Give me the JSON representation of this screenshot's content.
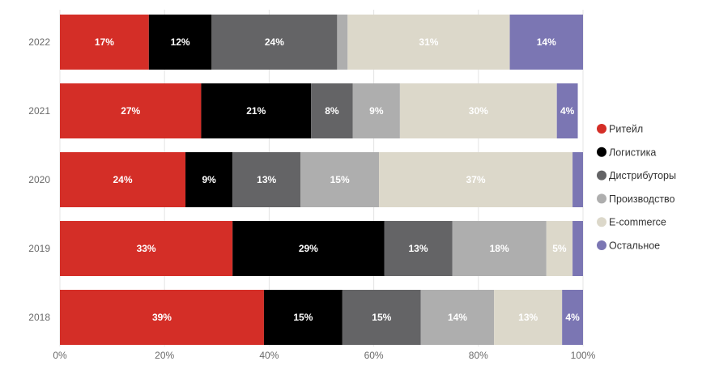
{
  "chart_data": {
    "type": "bar",
    "orientation": "horizontal",
    "stacked": true,
    "categories": [
      "2022",
      "2021",
      "2020",
      "2019",
      "2018"
    ],
    "series": [
      {
        "name": "Ритейл",
        "color": "#d42e27",
        "values": [
          17,
          27,
          24,
          33,
          39
        ],
        "labels": [
          "17%",
          "27%",
          "24%",
          "33%",
          "39%"
        ]
      },
      {
        "name": "Логистика",
        "color": "#000000",
        "values": [
          12,
          21,
          9,
          29,
          15
        ],
        "labels": [
          "12%",
          "21%",
          "9%",
          "29%",
          "15%"
        ]
      },
      {
        "name": "Дистрибуторы",
        "color": "#646466",
        "values": [
          24,
          8,
          13,
          13,
          15
        ],
        "labels": [
          "24%",
          "8%",
          "13%",
          "13%",
          "15%"
        ]
      },
      {
        "name": "Производство",
        "color": "#aeaeae",
        "values": [
          2,
          9,
          15,
          18,
          14
        ],
        "labels": [
          "",
          "9%",
          "15%",
          "18%",
          "14%"
        ]
      },
      {
        "name": "E-commerce",
        "color": "#dcd8ca",
        "values": [
          31,
          30,
          37,
          5,
          13
        ],
        "labels": [
          "31%",
          "30%",
          "37%",
          "5%",
          "13%"
        ]
      },
      {
        "name": "Остальное",
        "color": "#7b76b3",
        "values": [
          14,
          4,
          2,
          2,
          4
        ],
        "labels": [
          "14%",
          "4%",
          "",
          "",
          "4%"
        ]
      }
    ],
    "x_ticks": [
      "0%",
      "20%",
      "40%",
      "60%",
      "80%",
      "100%"
    ],
    "xlim": [
      0,
      100
    ],
    "grid": "vertical gridlines",
    "legend_position": "right",
    "title": "",
    "xlabel": "",
    "ylabel": ""
  }
}
